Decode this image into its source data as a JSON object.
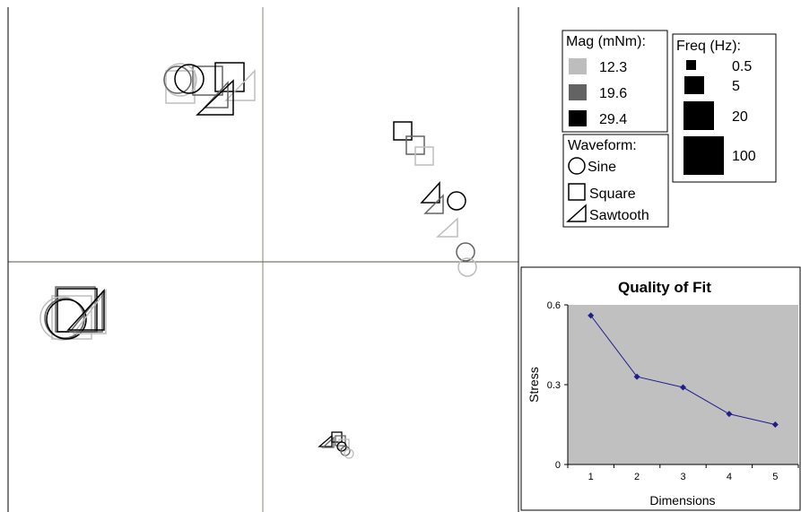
{
  "legend": {
    "mag": {
      "title": "Mag (mNm):",
      "items": [
        {
          "label": "12.3",
          "color": "#bdbdbd"
        },
        {
          "label": "19.6",
          "color": "#636363"
        },
        {
          "label": "29.4",
          "color": "#000000"
        }
      ]
    },
    "freq": {
      "title": "Freq (Hz):",
      "items": [
        {
          "label": "0.5"
        },
        {
          "label": "5"
        },
        {
          "label": "20"
        },
        {
          "label": "100"
        }
      ]
    },
    "waveform": {
      "title": "Waveform:",
      "items": [
        {
          "label": "Sine",
          "icon": "circle-icon"
        },
        {
          "label": "Square",
          "icon": "square-icon"
        },
        {
          "label": "Sawtooth",
          "icon": "triangle-icon"
        }
      ]
    }
  },
  "chart_data": {
    "type": "line",
    "title": "Quality of Fit",
    "xlabel": "Dimensions",
    "ylabel": "Stress",
    "x": [
      1,
      2,
      3,
      4,
      5
    ],
    "values": [
      0.56,
      0.33,
      0.29,
      0.19,
      0.15
    ],
    "xlim": [
      0.5,
      5.5
    ],
    "ylim": [
      0,
      0.6
    ],
    "yticks": [
      "0",
      "0.3",
      "0.6"
    ],
    "xticks": [
      "1",
      "2",
      "3",
      "4",
      "5"
    ],
    "line_color": "#1f1f8c",
    "plot_background": "#c0c0c0",
    "grid": false
  }
}
